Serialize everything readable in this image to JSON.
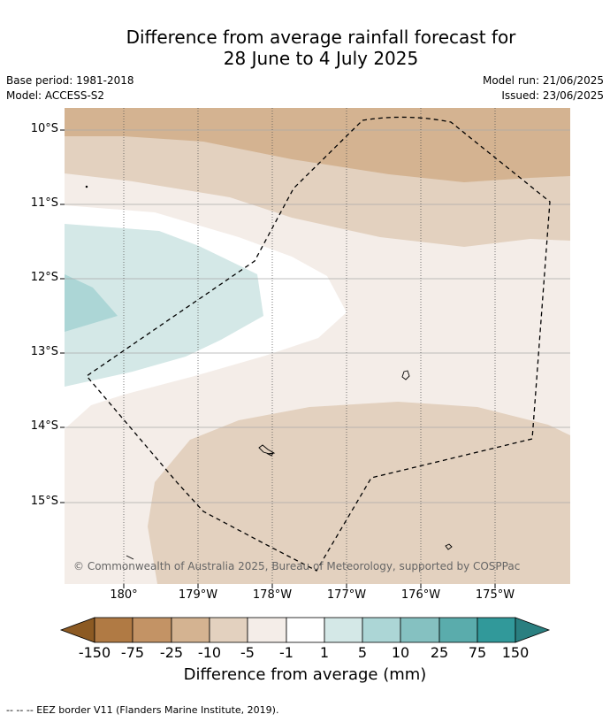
{
  "title": {
    "line1": "Difference from average rainfall forecast for",
    "line2": "28 June to 4 July 2025"
  },
  "meta": {
    "base_period": "Base period: 1981-2018",
    "model": "Model: ACCESS-S2",
    "model_run": "Model run: 21/06/2025",
    "issued": "Issued: 23/06/2025"
  },
  "map": {
    "lat_labels": [
      "10°S",
      "11°S",
      "12°S",
      "13°S",
      "14°S",
      "15°S"
    ],
    "lon_labels": [
      "180°",
      "179°W",
      "178°W",
      "177°W",
      "176°W",
      "175°W"
    ],
    "copyright": "© Commonwealth of Australia 2025, Bureau of Meteorology, supported by COSPPac",
    "eez_border_style": "dashed black"
  },
  "colorbar": {
    "ticks": [
      "-150",
      "-75",
      "-25",
      "-10",
      "-5",
      "-1",
      "1",
      "5",
      "10",
      "25",
      "75",
      "150"
    ],
    "colors": [
      "#8c5a23",
      "#b07a44",
      "#c39365",
      "#d4b391",
      "#e3d1bf",
      "#f4ede8",
      "#ffffff",
      "#d4e8e7",
      "#acd6d6",
      "#85c1c1",
      "#5aacac",
      "#31999a",
      "#2a7f80"
    ],
    "label": "Difference from average (mm)"
  },
  "footer": "--  --  -- EEZ border V11 (Flanders Marine Institute, 2019)."
}
